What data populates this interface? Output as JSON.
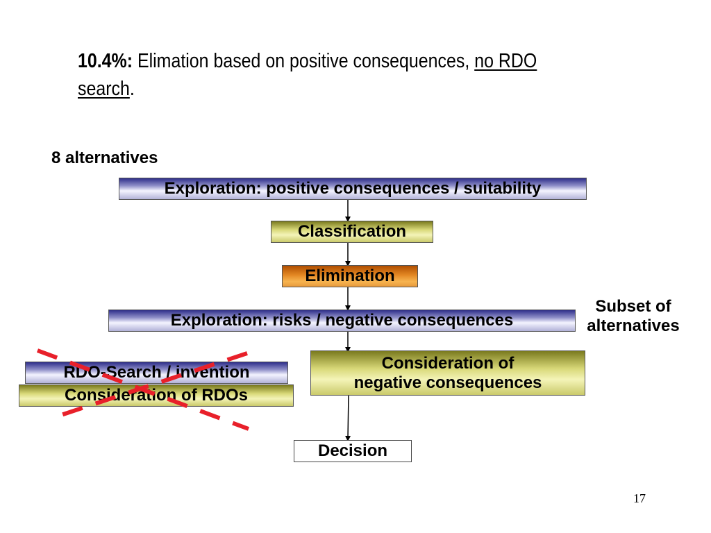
{
  "heading": {
    "percent": "10.4%:",
    "text": " Elimation based on positive consequences, ",
    "underlined_1": "no RDO",
    "underlined_2": "search",
    "end": "."
  },
  "labels": {
    "alternatives": "8 alternatives",
    "subset_line1": "Subset of",
    "subset_line2": "alternatives"
  },
  "flow": {
    "exploration_positive": "Exploration: positive consequences / suitability",
    "classification": "Classification",
    "elimination": "Elimination",
    "exploration_negative": "Exploration: risks / negative consequences",
    "consideration_negative_line1": "Consideration of",
    "consideration_negative_line2": "negative consequences",
    "decision": "Decision"
  },
  "crossed_out": {
    "rdo_search": "RDO-Search / invention",
    "consideration_rdos": "Consideration of RDOs"
  },
  "slide_number": "17",
  "colors": {
    "cross_mark": "#e8202a",
    "connector": "#000000"
  }
}
